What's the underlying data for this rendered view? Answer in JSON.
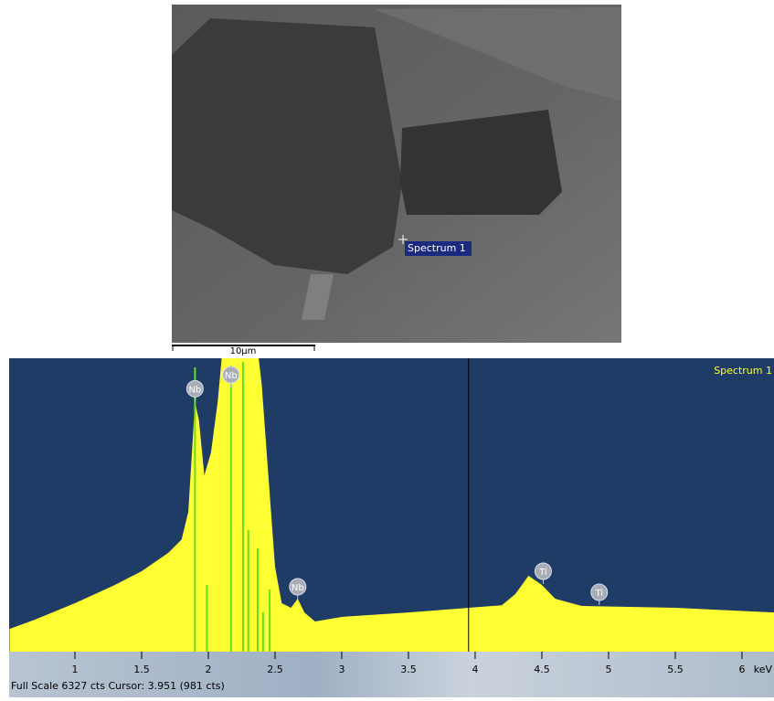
{
  "sem_image": {
    "marker_label": "Spectrum 1",
    "scale_bar_label": "10µm"
  },
  "chart_data": {
    "type": "spectrum",
    "x": [
      0.51,
      0.7,
      1.0,
      1.3,
      1.5,
      1.7,
      1.8,
      1.85,
      1.9,
      1.93,
      1.97,
      2.02,
      2.07,
      2.1,
      2.2,
      2.35,
      2.4,
      2.45,
      2.5,
      2.55,
      2.62,
      2.67,
      2.72,
      2.8,
      3.0,
      3.5,
      3.95,
      4.2,
      4.3,
      4.4,
      4.5,
      4.6,
      4.8,
      5.5,
      6.24
    ],
    "series": [
      {
        "name": "Spectrum 1",
        "color": "#ffff33",
        "values": [
          490,
          690,
          1045,
          1440,
          1735,
          2130,
          2420,
          3015,
          5380,
          4985,
          3800,
          4295,
          5380,
          6327,
          9000,
          7000,
          5770,
          3800,
          1830,
          1045,
          945,
          1140,
          845,
          650,
          750,
          845,
          945,
          1000,
          1240,
          1635,
          1440,
          1140,
          985,
          945,
          845
        ]
      }
    ],
    "marker_lines": {
      "color": "#66dd22",
      "x": [
        1.9,
        1.99,
        2.17,
        2.26,
        2.3,
        2.37,
        2.41,
        2.46
      ],
      "values": [
        6130,
        1440,
        6170,
        6250,
        2620,
        2230,
        850,
        1340
      ]
    },
    "peak_labels": [
      {
        "label": "Nb",
        "x": 1.9,
        "y": 5670
      },
      {
        "label": "Nb",
        "x": 2.17,
        "y": 5970
      },
      {
        "label": "Nb",
        "x": 2.67,
        "y": 1400
      },
      {
        "label": "Ti",
        "x": 4.51,
        "y": 1735
      },
      {
        "label": "Ti",
        "x": 4.93,
        "y": 1280
      }
    ],
    "cursor": 3.951,
    "xlim": [
      0.507,
      6.24
    ],
    "ylim": [
      0,
      6327
    ],
    "xticks": [
      1,
      1.5,
      2,
      2.5,
      3,
      3.5,
      4,
      4.5,
      5,
      5.5,
      6
    ],
    "xlabel": "keV",
    "status": "Full Scale 6327 cts Cursor: 3.951  (981 cts)"
  }
}
